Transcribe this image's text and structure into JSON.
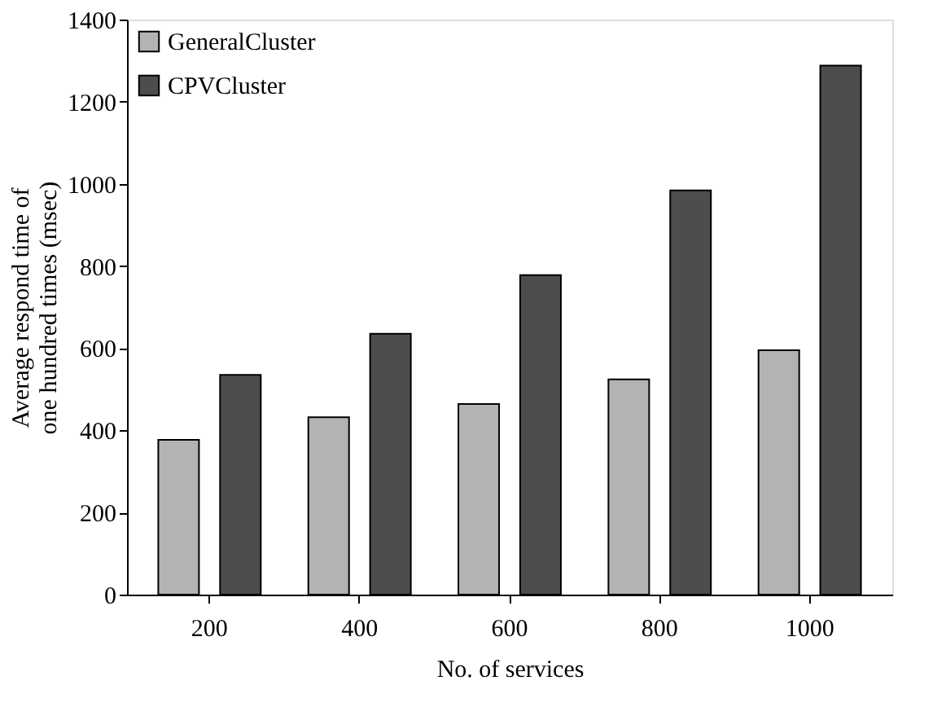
{
  "chart_data": {
    "type": "bar",
    "xlabel": "No. of services",
    "ylabel": "Average respond time of one hundred times (msec)",
    "categories": [
      "200",
      "400",
      "600",
      "800",
      "1000"
    ],
    "series": [
      {
        "name": "GeneralCluster",
        "color": "#b3b3b3",
        "values": [
          377,
          432,
          464,
          524,
          595
        ]
      },
      {
        "name": "CPVCluster",
        "color": "#4d4d4d",
        "values": [
          535,
          635,
          778,
          984,
          1288
        ]
      }
    ],
    "ylim": [
      0,
      1400
    ],
    "yticks": [
      0,
      200,
      400,
      600,
      800,
      1000,
      1200,
      1400
    ],
    "grid": false,
    "legend": "top left"
  }
}
